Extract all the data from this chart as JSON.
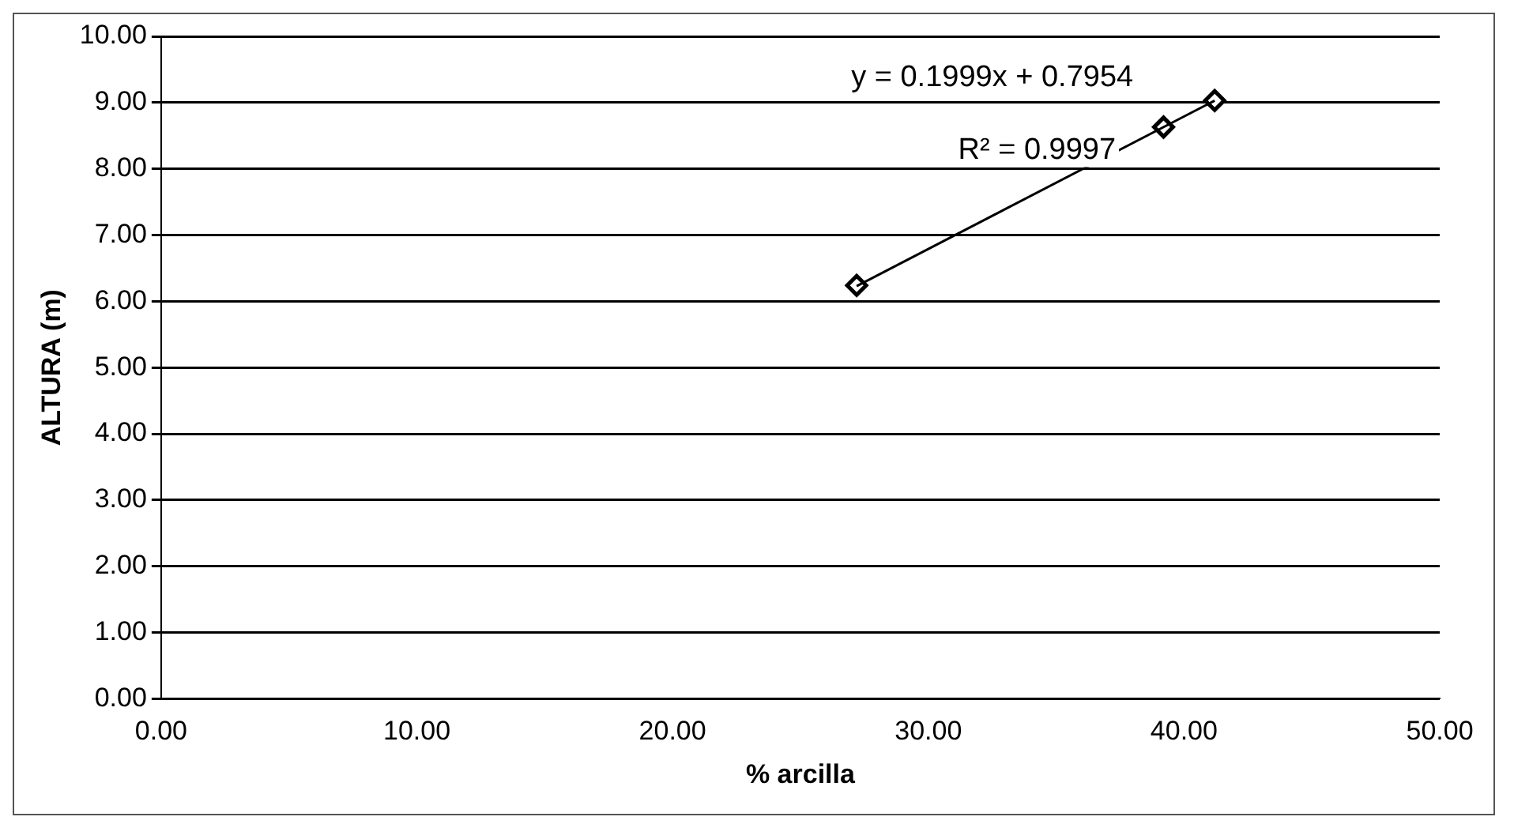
{
  "chart_data": {
    "type": "scatter",
    "xlabel": "% arcilla",
    "ylabel": "ALTURA (m)",
    "series": [
      {
        "type": "scatter",
        "color": "#000000",
        "x": [
          27.2,
          39.2,
          41.2
        ],
        "values": [
          6.24,
          8.63,
          9.03
        ]
      },
      {
        "type": "line",
        "color": "#000000",
        "x": [
          27.2,
          41.2
        ],
        "values": [
          6.23,
          9.03
        ],
        "marker": "none"
      }
    ],
    "marker": "diamond",
    "grid": "y",
    "legend": false,
    "xlim": [
      0,
      50
    ],
    "xticks": [
      {
        "value": 0,
        "label": "0.00"
      },
      {
        "value": 10,
        "label": "10.00"
      },
      {
        "value": 20,
        "label": "20.00"
      },
      {
        "value": 30,
        "label": "30.00"
      },
      {
        "value": 40,
        "label": "40.00"
      },
      {
        "value": 50,
        "label": "50.00"
      }
    ],
    "ylim": [
      0,
      10
    ],
    "yticks": [
      {
        "value": 0,
        "label": "0.00"
      },
      {
        "value": 1,
        "label": "1.00"
      },
      {
        "value": 2,
        "label": "2.00"
      },
      {
        "value": 3,
        "label": "3.00"
      },
      {
        "value": 4,
        "label": "4.00"
      },
      {
        "value": 5,
        "label": "5.00"
      },
      {
        "value": 6,
        "label": "6.00"
      },
      {
        "value": 7,
        "label": "7.00"
      },
      {
        "value": 8,
        "label": "8.00"
      },
      {
        "value": 9,
        "label": "9.00"
      },
      {
        "value": 10,
        "label": "10.00"
      }
    ],
    "annotations": [
      "y = 0.1999x + 0.7954",
      "R² = 0.9997"
    ]
  }
}
